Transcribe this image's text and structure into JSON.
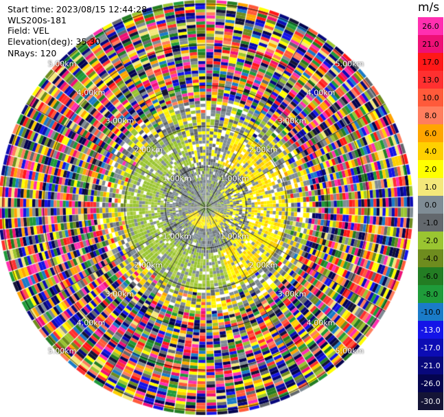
{
  "header": {
    "start_time": "Start time: 2023/08/15 12:44:28",
    "instrument": "WLS200s-181",
    "field": "Field: VEL",
    "elevation": "Elevation(deg): 35.30",
    "nrays": "NRays: 120"
  },
  "colorbar": {
    "unit": "m/s",
    "tick_labels": [
      "26.0",
      "21.0",
      "17.0",
      "13.0",
      "10.0",
      "8.0",
      "6.0",
      "4.0",
      "2.0",
      "1.0",
      "0.0",
      "-1.0",
      "-2.0",
      "-4.0",
      "-6.0",
      "-8.0",
      "-10.0",
      "-13.0",
      "-17.0",
      "-21.0",
      "-26.0",
      "-30.0"
    ],
    "colors": [
      "#ff2fb0",
      "#ee1076",
      "#ff1818",
      "#ff3030",
      "#ff5a3a",
      "#ff7e5e",
      "#ffa500",
      "#ffd000",
      "#ffff00",
      "#f4e87a",
      "#7f8c95",
      "#63686d",
      "#9ac531",
      "#6e8c1e",
      "#237d23",
      "#1f9b3a",
      "#1a7bc8",
      "#1414e8",
      "#0c0cb4",
      "#08087c",
      "#04044f",
      "#141436"
    ]
  },
  "range_rings": {
    "labels": [
      "1.00km",
      "2.00km",
      "3.00km",
      "4.00km",
      "5.00km"
    ],
    "radius_km": [
      1,
      2,
      3,
      4,
      5
    ]
  },
  "chart_data": {
    "type": "heatmap",
    "projection": "polar PPI (plan position indicator)",
    "field": "VEL",
    "units": "m/s",
    "n_rays": 120,
    "max_range_km": 5.1,
    "colorbar_range": [
      -30.0,
      26.0
    ],
    "near_range_pattern": [
      {
        "range_km": [
          0.0,
          0.2
        ],
        "dominant": "green (-4 to -2 m/s)"
      },
      {
        "range_km": [
          0.2,
          1.2
        ],
        "dominant": "gray (-1 to 1 m/s), yellow (2 to 4 m/s) to the south"
      },
      {
        "range_km": [
          1.2,
          2.0
        ],
        "dominant": "light green (-2 to -1 m/s) west/south, yellow (2 to 4 m/s) east"
      },
      {
        "range_km": [
          2.0,
          2.6
        ],
        "dominant": "gray/yellow mix"
      },
      {
        "range_km": [
          2.6,
          5.1
        ],
        "dominant": "noise (all colors)"
      }
    ]
  }
}
